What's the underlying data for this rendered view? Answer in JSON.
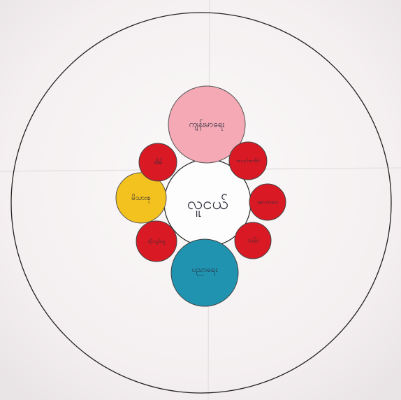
{
  "nodes": [
    {
      "label": "လူငယ်"
    },
    {
      "label": "ကျန်းမာရေး"
    },
    {
      "label": "ပညာရေး"
    },
    {
      "label": "မိသားစု"
    },
    {
      "label": "အိမ်"
    },
    {
      "label": "အလုပ်အကိုင်"
    },
    {
      "label": "အားကစား"
    },
    {
      "label": "လမ်း"
    },
    {
      "label": "ဆိုးသွမ်းမှု"
    }
  ]
}
